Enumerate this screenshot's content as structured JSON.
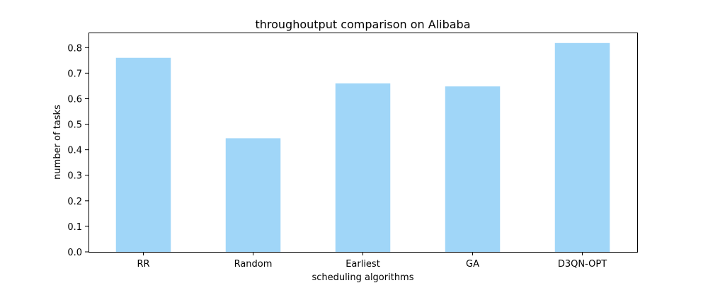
{
  "chart_data": {
    "type": "bar",
    "title": "throughoutput comparison on Alibaba",
    "xlabel": "scheduling algorithms",
    "ylabel": "number of tasks",
    "categories": [
      "RR",
      "Random",
      "Earliest",
      "GA",
      "D3QN-OPT"
    ],
    "values": [
      0.76,
      0.445,
      0.66,
      0.648,
      0.818
    ],
    "ylim": [
      0,
      0.859
    ],
    "yticks": [
      0.0,
      0.1,
      0.2,
      0.3,
      0.4,
      0.5,
      0.6,
      0.7,
      0.8
    ],
    "ytick_labels": [
      "0.0",
      "0.1",
      "0.2",
      "0.3",
      "0.4",
      "0.5",
      "0.6",
      "0.7",
      "0.8"
    ],
    "grid": false,
    "bar_color": "#a0d6f8"
  }
}
